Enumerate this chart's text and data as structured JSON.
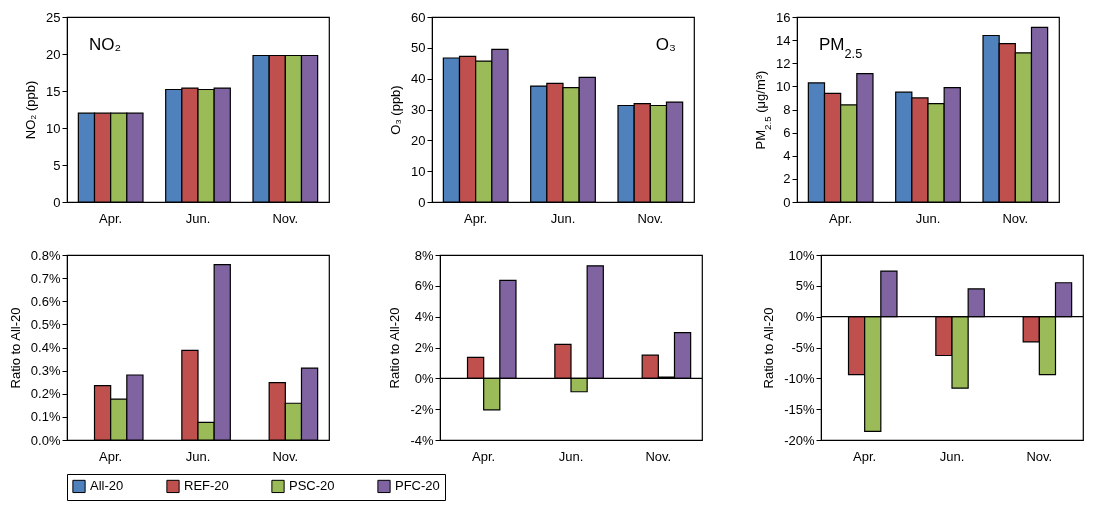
{
  "chart_data": [
    {
      "type": "bar",
      "categories": [
        "Apr.",
        "Jun.",
        "Nov."
      ],
      "ylabel": "NO₂ (ppb)",
      "ylim": [
        0,
        25
      ],
      "yticks": [
        0,
        5,
        10,
        15,
        20,
        25
      ],
      "legend": "bottom",
      "annotations": [
        "NO₂"
      ],
      "series": [
        {
          "name": "All-20",
          "color": "#4f81bd",
          "values": [
            12,
            15.2,
            19.8
          ]
        },
        {
          "name": "REF-20",
          "color": "#c0504d",
          "values": [
            12,
            15.4,
            19.8
          ]
        },
        {
          "name": "PSC-20",
          "color": "#9bbb59",
          "values": [
            12,
            15.2,
            19.8
          ]
        },
        {
          "name": "PFC-20",
          "color": "#8064a2",
          "values": [
            12,
            15.4,
            19.8
          ]
        }
      ]
    },
    {
      "type": "bar",
      "categories": [
        "Apr.",
        "Jun.",
        "Nov."
      ],
      "ylabel": "O₃ (ppb)",
      "ylim": [
        0,
        60
      ],
      "yticks": [
        0,
        10,
        20,
        30,
        40,
        50,
        60
      ],
      "legend": "bottom",
      "annotations": [
        "O₃"
      ],
      "series": [
        {
          "name": "All-20",
          "color": "#4f81bd",
          "values": [
            46.7,
            37.6,
            31.3
          ]
        },
        {
          "name": "REF-20",
          "color": "#c0504d",
          "values": [
            47.2,
            38.5,
            31.9
          ]
        },
        {
          "name": "PSC-20",
          "color": "#9bbb59",
          "values": [
            45.7,
            37.1,
            31.3
          ]
        },
        {
          "name": "PFC-20",
          "color": "#8064a2",
          "values": [
            49.5,
            40.4,
            32.4
          ]
        }
      ]
    },
    {
      "type": "bar",
      "categories": [
        "Apr.",
        "Jun.",
        "Nov."
      ],
      "ylabel": "PM$_{2.5}$ (μg/m³)",
      "ylim": [
        0,
        16
      ],
      "yticks": [
        0,
        2,
        4,
        6,
        8,
        10,
        12,
        14,
        16
      ],
      "legend": "bottom",
      "annotations": [
        "PM$_{2.5}$"
      ],
      "series": [
        {
          "name": "All-20",
          "color": "#4f81bd",
          "values": [
            10.3,
            9.5,
            14.4
          ]
        },
        {
          "name": "REF-20",
          "color": "#c0504d",
          "values": [
            9.4,
            9.0,
            13.7
          ]
        },
        {
          "name": "PSC-20",
          "color": "#9bbb59",
          "values": [
            8.4,
            8.5,
            12.9
          ]
        },
        {
          "name": "PFC-20",
          "color": "#8064a2",
          "values": [
            11.1,
            9.9,
            15.1
          ]
        }
      ]
    },
    {
      "type": "bar",
      "categories": [
        "Apr.",
        "Jun.",
        "Nov."
      ],
      "ylabel": "Ratio to All-20",
      "ylim": [
        0,
        0.8
      ],
      "yticks": [
        {
          "value": 0,
          "label": "0.0%"
        },
        {
          "value": 0.1,
          "label": "0.1%"
        },
        {
          "value": 0.2,
          "label": "0.2%"
        },
        {
          "value": 0.3,
          "label": "0.3%"
        },
        {
          "value": 0.4,
          "label": "0.4%"
        },
        {
          "value": 0.5,
          "label": "0.5%"
        },
        {
          "value": 0.6,
          "label": "0.6%"
        },
        {
          "value": 0.7,
          "label": "0.7%"
        },
        {
          "value": 0.8,
          "label": "0.8%"
        }
      ],
      "legend": "bottom",
      "series": [
        {
          "name": "All-20",
          "color": "#4f81bd",
          "values": [
            null,
            null,
            null
          ]
        },
        {
          "name": "REF-20",
          "color": "#c0504d",
          "values": [
            0.235,
            0.388,
            0.248
          ]
        },
        {
          "name": "PSC-20",
          "color": "#9bbb59",
          "values": [
            0.177,
            0.076,
            0.159
          ]
        },
        {
          "name": "PFC-20",
          "color": "#8064a2",
          "values": [
            0.281,
            0.758,
            0.311
          ]
        }
      ]
    },
    {
      "type": "bar",
      "categories": [
        "Apr.",
        "Jun.",
        "Nov."
      ],
      "ylabel": "Ratio to All-20",
      "ylim": [
        -4,
        8
      ],
      "yticks": [
        {
          "value": -4,
          "label": "-4%"
        },
        {
          "value": -2,
          "label": "-2%"
        },
        {
          "value": 0,
          "label": "0%"
        },
        {
          "value": 2,
          "label": "2%"
        },
        {
          "value": 4,
          "label": "4%"
        },
        {
          "value": 6,
          "label": "6%"
        },
        {
          "value": 8,
          "label": "8%"
        }
      ],
      "legend": "bottom",
      "series": [
        {
          "name": "All-20",
          "color": "#4f81bd",
          "values": [
            null,
            null,
            null
          ]
        },
        {
          "name": "REF-20",
          "color": "#c0504d",
          "values": [
            1.36,
            2.2,
            1.5
          ]
        },
        {
          "name": "PSC-20",
          "color": "#9bbb59",
          "values": [
            -2.04,
            -0.87,
            0.08
          ]
        },
        {
          "name": "PFC-20",
          "color": "#8064a2",
          "values": [
            6.35,
            7.3,
            2.97
          ]
        }
      ]
    },
    {
      "type": "bar",
      "categories": [
        "Apr.",
        "Jun.",
        "Nov."
      ],
      "ylabel": "Ratio to All-20",
      "ylim": [
        -20,
        10
      ],
      "yticks": [
        {
          "value": -20,
          "label": "-20%"
        },
        {
          "value": -15,
          "label": "-15%"
        },
        {
          "value": -10,
          "label": "-10%"
        },
        {
          "value": -5,
          "label": "-5%"
        },
        {
          "value": 0,
          "label": "0%"
        },
        {
          "value": 5,
          "label": "5%"
        },
        {
          "value": 10,
          "label": "10%"
        }
      ],
      "legend": "bottom",
      "series": [
        {
          "name": "All-20",
          "color": "#4f81bd",
          "values": [
            null,
            null,
            null
          ]
        },
        {
          "name": "REF-20",
          "color": "#c0504d",
          "values": [
            -9.4,
            -6.3,
            -4.1
          ]
        },
        {
          "name": "PSC-20",
          "color": "#9bbb59",
          "values": [
            -18.6,
            -11.6,
            -9.4
          ]
        },
        {
          "name": "PFC-20",
          "color": "#8064a2",
          "values": [
            7.4,
            4.5,
            5.5
          ]
        }
      ]
    }
  ]
}
